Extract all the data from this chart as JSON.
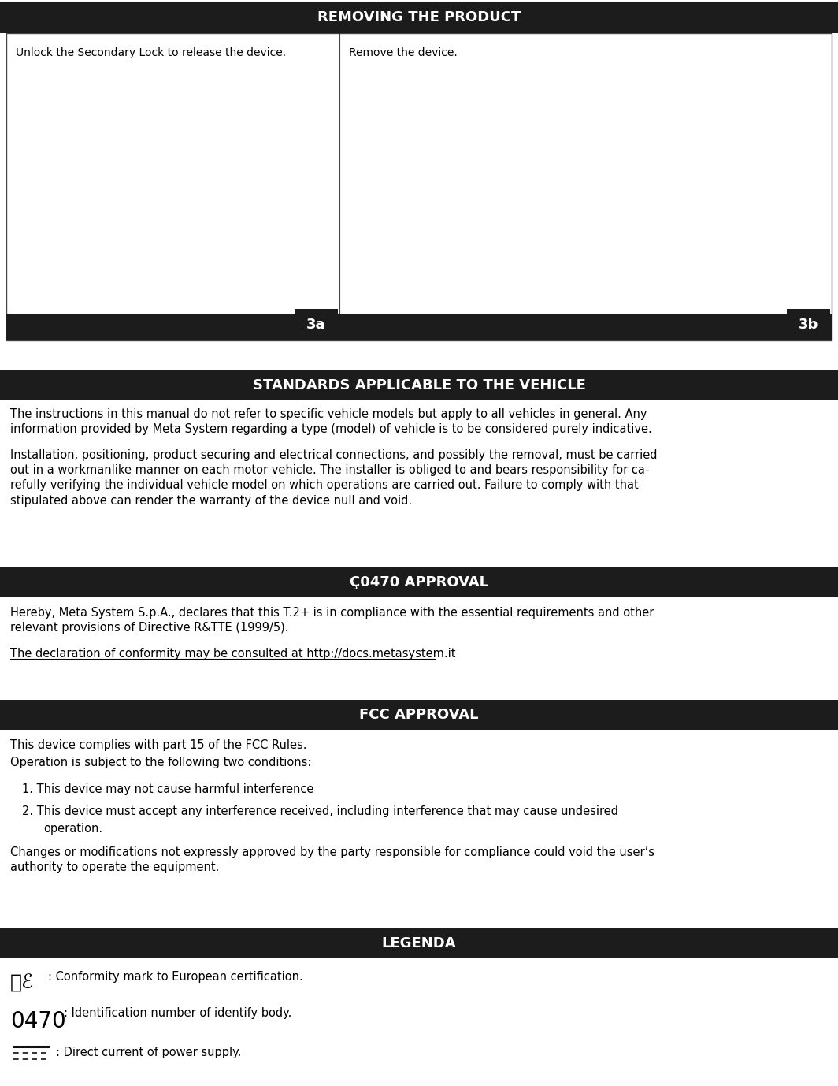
{
  "bg_color": "#ffffff",
  "dark_header_color": "#1c1c1c",
  "header_text_color": "#ffffff",
  "body_text_color": "#000000",
  "section1_title": "REMOVING THE PRODUCT",
  "section2_title": "STANDARDS APPLICABLE TO THE VEHICLE",
  "section3_title": "Ç0470 APPROVAL",
  "section4_title": "FCC APPROVAL",
  "section5_title": "LEGENDA",
  "box1_label": "Unlock the Secondary Lock to release the device.",
  "box2_label": "Remove the device.",
  "label_3a": "3a",
  "label_3b": "3b",
  "standards_text_1": "The instructions in this manual do not refer to specific vehicle models but apply to all vehicles in general. Any\ninformation provided by Meta System regarding a type (model) of vehicle is to be considered purely indicative.",
  "standards_text_2": "Installation, positioning, product securing and electrical connections, and possibly the removal, must be carried\nout in a workmanlike manner on each motor vehicle. The installer is obliged to and bears responsibility for ca-\nrefully verifying the individual vehicle model on which operations are carried out. Failure to comply with that\nstipulated above can render the warranty of the device null and void.",
  "approval_line1": "Hereby, Meta System S.p.A., declares that this T.2+ is in compliance with the essential requirements and other\nrelevant provisions of Directive R&TTE (1999/5).",
  "approval_line2": "The declaration of conformity may be consulted at http://docs.metasystem.it",
  "fcc_intro1": "This device complies with part 15 of the FCC Rules.",
  "fcc_intro2": "Operation is subject to the following two conditions:",
  "fcc_item1": "1. This device may not cause harmful interference",
  "fcc_item2a": "2. This device must accept any interference received, including interference that may cause undesired",
  "fcc_item2b": "    operation.",
  "fcc_changes": "Changes or modifications not expressly approved by the party responsible for compliance could void the user’s\nauthority to operate the equipment.",
  "legenda_ce_text": ": Conformity mark to European certification.",
  "legenda_0470_text": ": Identification number of identify body.",
  "legenda_dc_text": ": Direct current of power supply.",
  "font_size_header": 13,
  "font_size_body": 10.5,
  "font_size_panel_label": 10.0,
  "fig_width": 10.64,
  "fig_height": 13.78,
  "dpi": 100
}
